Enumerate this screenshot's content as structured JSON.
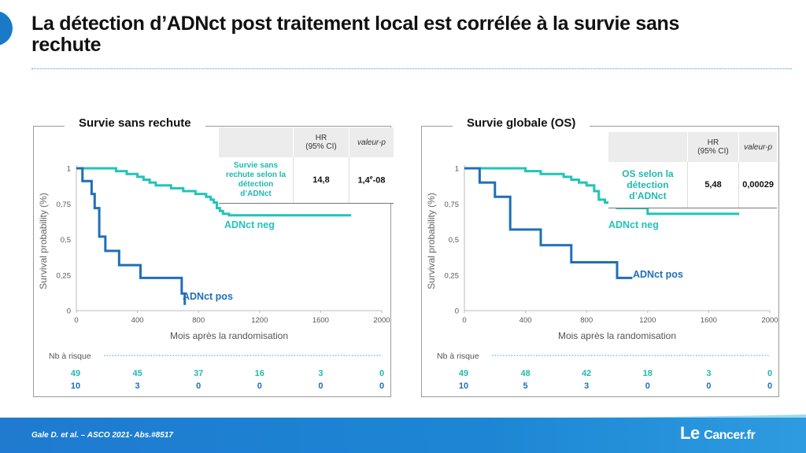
{
  "title": "La détection d’ADNct post traitement local est corrélée à la survie sans rechute",
  "colors": {
    "teal": "#22c4b8",
    "blue": "#1f6fb8",
    "accent": "#1a7ac7",
    "risk_teal": "#20b8b0",
    "risk_blue": "#1f6fb8"
  },
  "footer": {
    "citation": "Gale D. et al. – ASCO 2021- Abs.#8517",
    "logo": "Le Cancer.fr"
  },
  "panels": [
    {
      "title": "Survie sans rechute",
      "table": {
        "col_hr": "HR",
        "col_hr_ci": "(95% CI)",
        "col_p": "valeur-p",
        "row_label": "Survie sans rechute selon la détection d’ADNct",
        "hr": "14,8",
        "p": "1,4e-08"
      },
      "risk": {
        "label": "Nb à risque",
        "row1": [
          "49",
          "45",
          "37",
          "16",
          "3",
          "0"
        ],
        "row2": [
          "10",
          "3",
          "0",
          "0",
          "0",
          "0"
        ]
      }
    },
    {
      "title": "Survie globale (OS)",
      "table": {
        "col_hr": "HR",
        "col_hr_ci": "(95% CI)",
        "col_p": "valeur-p",
        "row_label": "OS selon la détection d’ADNct",
        "hr": "5,48",
        "p": "0,00029"
      },
      "risk": {
        "label": "Nb à risque",
        "row1": [
          "49",
          "48",
          "42",
          "18",
          "3",
          "0"
        ],
        "row2": [
          "10",
          "5",
          "3",
          "0",
          "0",
          "0"
        ]
      }
    }
  ],
  "chart_data": [
    {
      "type": "line",
      "title": "Survie sans rechute",
      "xlabel": "Mois après la randomisation",
      "ylabel": "Survival probability (%)",
      "xlim": [
        0,
        2000
      ],
      "ylim": [
        0,
        1
      ],
      "xticks": [
        0,
        400,
        800,
        1200,
        1600,
        2000
      ],
      "yticks": [
        {
          "v": 0,
          "label": "0"
        },
        {
          "v": 0.25,
          "label": "0,25"
        },
        {
          "v": 0.5,
          "label": "0,5"
        },
        {
          "v": 0.75,
          "label": "0,75"
        },
        {
          "v": 1,
          "label": "1"
        }
      ],
      "series": [
        {
          "name": "ADNct neg",
          "color": "#22c4b8",
          "x": [
            0,
            260,
            330,
            400,
            440,
            480,
            520,
            620,
            700,
            780,
            850,
            880,
            900,
            920,
            940,
            960,
            1000,
            1800
          ],
          "y": [
            1,
            0.98,
            0.96,
            0.94,
            0.92,
            0.9,
            0.88,
            0.86,
            0.84,
            0.82,
            0.8,
            0.78,
            0.76,
            0.72,
            0.7,
            0.68,
            0.67,
            0.67
          ]
        },
        {
          "name": "ADNct pos",
          "color": "#1f6fb8",
          "x": [
            0,
            40,
            100,
            120,
            150,
            190,
            280,
            420,
            690,
            710,
            710
          ],
          "y": [
            1,
            0.91,
            0.82,
            0.72,
            0.52,
            0.42,
            0.32,
            0.23,
            0.12,
            0.04,
            0.04
          ]
        }
      ]
    },
    {
      "type": "line",
      "title": "Survie globale (OS)",
      "xlabel": "Mois après la randomisation",
      "ylabel": "Survival probability (%)",
      "xlim": [
        0,
        2000
      ],
      "ylim": [
        0,
        1
      ],
      "xticks": [
        0,
        400,
        800,
        1200,
        1600,
        2000
      ],
      "yticks": [
        {
          "v": 0,
          "label": "0"
        },
        {
          "v": 0.25,
          "label": "0,25"
        },
        {
          "v": 0.5,
          "label": "0,5"
        },
        {
          "v": 0.75,
          "label": "0,75"
        },
        {
          "v": 1,
          "label": "1"
        }
      ],
      "series": [
        {
          "name": "ADNct neg",
          "color": "#22c4b8",
          "x": [
            0,
            400,
            500,
            650,
            700,
            750,
            800,
            850,
            880,
            920,
            960,
            1000,
            1100,
            1200,
            1800
          ],
          "y": [
            1,
            0.98,
            0.96,
            0.94,
            0.92,
            0.9,
            0.88,
            0.84,
            0.78,
            0.76,
            0.74,
            0.72,
            0.72,
            0.68,
            0.68
          ]
        },
        {
          "name": "ADNct pos",
          "color": "#1f6fb8",
          "x": [
            0,
            100,
            200,
            300,
            400,
            500,
            600,
            700,
            1000,
            1100
          ],
          "y": [
            1,
            0.9,
            0.8,
            0.57,
            0.57,
            0.46,
            0.46,
            0.34,
            0.23,
            0.23
          ]
        }
      ]
    }
  ]
}
